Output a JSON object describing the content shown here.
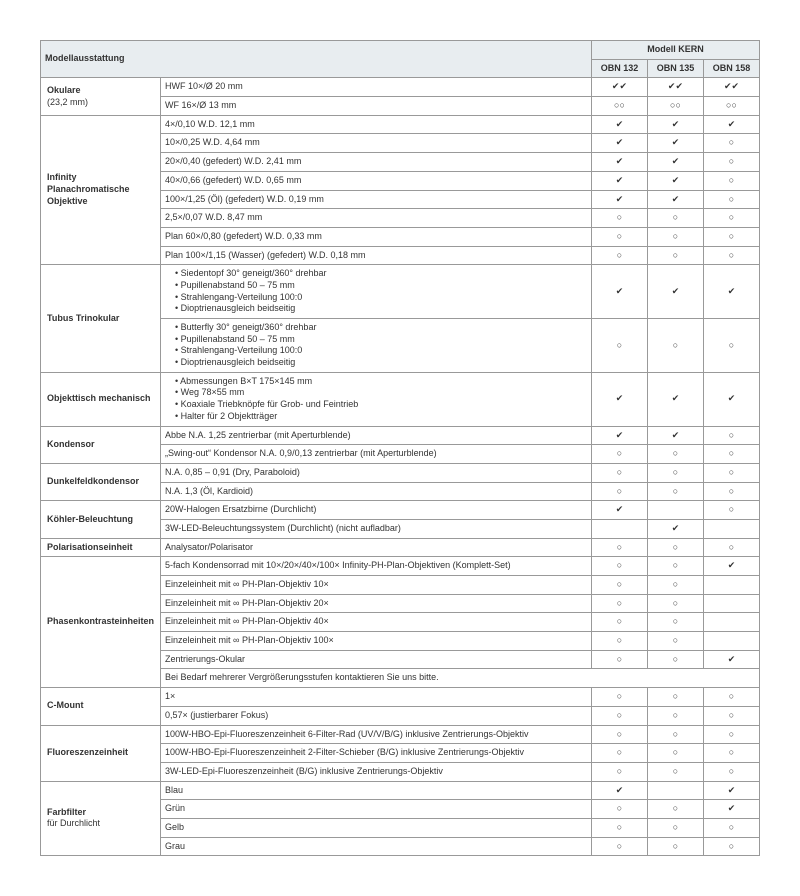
{
  "header": {
    "left": "Modellausstattung",
    "right": "Modell KERN",
    "models": [
      "OBN 132",
      "OBN 135",
      "OBN 158"
    ]
  },
  "symbols": {
    "check": "✔",
    "dblcheck": "✔✔",
    "circle": "○",
    "dblcircle": "○○",
    "blank": ""
  },
  "sections": [
    {
      "category": "Okulare",
      "subtext": "(23,2 mm)",
      "rows": [
        {
          "spec": "HWF 10×/Ø 20 mm",
          "marks": [
            "dblcheck",
            "dblcheck",
            "dblcheck"
          ]
        },
        {
          "spec": "WF 16×/Ø 13 mm",
          "marks": [
            "dblcircle",
            "dblcircle",
            "dblcircle"
          ]
        }
      ]
    },
    {
      "category": "Infinity Planachromatische Objektive",
      "rows": [
        {
          "spec": "4×/0,10 W.D. 12,1 mm",
          "marks": [
            "check",
            "check",
            "check"
          ]
        },
        {
          "spec": "10×/0,25 W.D. 4,64 mm",
          "marks": [
            "check",
            "check",
            "circle"
          ]
        },
        {
          "spec": "20×/0,40 (gefedert) W.D. 2,41 mm",
          "marks": [
            "check",
            "check",
            "circle"
          ]
        },
        {
          "spec": "40×/0,66 (gefedert) W.D. 0,65 mm",
          "marks": [
            "check",
            "check",
            "circle"
          ]
        },
        {
          "spec": "100×/1,25 (Öl) (gefedert) W.D. 0,19 mm",
          "marks": [
            "check",
            "check",
            "circle"
          ]
        },
        {
          "spec": "2,5×/0,07 W.D. 8,47 mm",
          "marks": [
            "circle",
            "circle",
            "circle"
          ]
        },
        {
          "spec": "Plan 60×/0,80 (gefedert) W.D. 0,33 mm",
          "marks": [
            "circle",
            "circle",
            "circle"
          ]
        },
        {
          "spec": "Plan 100×/1,15 (Wasser) (gefedert) W.D. 0,18 mm",
          "marks": [
            "circle",
            "circle",
            "circle"
          ]
        }
      ]
    },
    {
      "category": "Tubus Trinokular",
      "rows": [
        {
          "spec_list": [
            "Siedentopf 30° geneigt/360° drehbar",
            "Pupillenabstand 50 – 75 mm",
            "Strahlengang-Verteilung 100:0",
            "Dioptrienausgleich beidseitig"
          ],
          "marks": [
            "check",
            "check",
            "check"
          ]
        },
        {
          "spec_list": [
            "Butterfly 30° geneigt/360° drehbar",
            "Pupillenabstand 50 – 75 mm",
            "Strahlengang-Verteilung 100:0",
            "Dioptrienausgleich beidseitig"
          ],
          "marks": [
            "circle",
            "circle",
            "circle"
          ]
        }
      ]
    },
    {
      "category": "Objekttisch mechanisch",
      "rows": [
        {
          "spec_list": [
            "Abmessungen B×T 175×145 mm",
            "Weg 78×55 mm",
            "Koaxiale Triebknöpfe für Grob- und Feintrieb",
            "Halter für 2 Objektträger"
          ],
          "marks": [
            "check",
            "check",
            "check"
          ]
        }
      ]
    },
    {
      "category": "Kondensor",
      "rows": [
        {
          "spec": "Abbe N.A. 1,25 zentrierbar (mit Aperturblende)",
          "marks": [
            "check",
            "check",
            "circle"
          ]
        },
        {
          "spec": "„Swing-out“ Kondensor N.A. 0,9/0,13 zentrierbar (mit Aperturblende)",
          "marks": [
            "circle",
            "circle",
            "circle"
          ]
        }
      ]
    },
    {
      "category": "Dunkelfeld­kondensor",
      "rows": [
        {
          "spec": "N.A. 0,85 – 0,91 (Dry, Paraboloid)",
          "marks": [
            "circle",
            "circle",
            "circle"
          ]
        },
        {
          "spec": "N.A. 1,3 (Öl, Kardioid)",
          "marks": [
            "circle",
            "circle",
            "circle"
          ]
        }
      ]
    },
    {
      "category": "Köhler-Beleuchtung",
      "rows": [
        {
          "spec": "20W-Halogen Ersatzbirne (Durchlicht)",
          "marks": [
            "check",
            "blank",
            "circle"
          ]
        },
        {
          "spec": "3W-LED-Beleuchtungssystem (Durchlicht) (nicht aufladbar)",
          "marks": [
            "blank",
            "check",
            "blank"
          ]
        }
      ]
    },
    {
      "category": "Polarisationseinheit",
      "rows": [
        {
          "spec": "Analysator/Polarisator",
          "marks": [
            "circle",
            "circle",
            "circle"
          ]
        }
      ]
    },
    {
      "category": "Phasenkontrast­einheiten",
      "rows": [
        {
          "spec": "5-fach Kondensorrad mit 10×/20×/40×/100× Infinity-PH-Plan-Objektiven (Komplett-Set)",
          "marks": [
            "circle",
            "circle",
            "check"
          ]
        },
        {
          "spec": "Einzeleinheit mit ∞ PH-Plan-Objektiv 10×",
          "marks": [
            "circle",
            "circle",
            "blank"
          ]
        },
        {
          "spec": "Einzeleinheit mit ∞ PH-Plan-Objektiv 20×",
          "marks": [
            "circle",
            "circle",
            "blank"
          ]
        },
        {
          "spec": "Einzeleinheit mit ∞ PH-Plan-Objektiv 40×",
          "marks": [
            "circle",
            "circle",
            "blank"
          ]
        },
        {
          "spec": "Einzeleinheit mit ∞ PH-Plan-Objektiv 100×",
          "marks": [
            "circle",
            "circle",
            "blank"
          ]
        },
        {
          "spec": "Zentrierungs-Okular",
          "marks": [
            "circle",
            "circle",
            "check"
          ]
        }
      ],
      "fullrow": "Bei Bedarf mehrerer Vergrößerungsstufen kontaktieren Sie uns bitte."
    },
    {
      "category": "C-Mount",
      "rows": [
        {
          "spec": "1×",
          "marks": [
            "circle",
            "circle",
            "circle"
          ]
        },
        {
          "spec": "0,57× (justierbarer Fokus)",
          "marks": [
            "circle",
            "circle",
            "circle"
          ]
        }
      ]
    },
    {
      "category": "Fluoreszenzeinheit",
      "rows": [
        {
          "spec": "100W-HBO-Epi-Fluoreszenzeinheit 6-Filter-Rad (UV/V/B/G) inklusive Zentrierungs-Objektiv",
          "marks": [
            "circle",
            "circle",
            "circle"
          ]
        },
        {
          "spec": "100W-HBO-Epi-Fluoreszenzeinheit 2-Filter-Schieber (B/G) inklusive Zentrierungs-Objektiv",
          "marks": [
            "circle",
            "circle",
            "circle"
          ]
        },
        {
          "spec": "3W-LED-Epi-Fluoreszenzeinheit (B/G) inklusive Zentrierungs-Objektiv",
          "marks": [
            "circle",
            "circle",
            "circle"
          ]
        }
      ]
    },
    {
      "category": "Farbfilter",
      "subtext": "für Durchlicht",
      "rows": [
        {
          "spec": "Blau",
          "marks": [
            "check",
            "blank",
            "check"
          ]
        },
        {
          "spec": "Grün",
          "marks": [
            "circle",
            "circle",
            "check"
          ]
        },
        {
          "spec": "Gelb",
          "marks": [
            "circle",
            "circle",
            "circle"
          ]
        },
        {
          "spec": "Grau",
          "marks": [
            "circle",
            "circle",
            "circle"
          ]
        }
      ]
    }
  ]
}
